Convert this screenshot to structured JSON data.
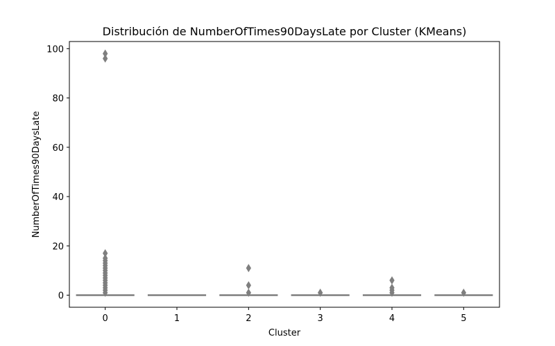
{
  "chart_data": {
    "type": "box",
    "title": "Distribución de NumberOfTimes90DaysLate por Cluster (KMeans)",
    "xlabel": "Cluster",
    "ylabel": "NumberOfTimes90DaysLate",
    "categories": [
      "0",
      "1",
      "2",
      "3",
      "4",
      "5"
    ],
    "ylim": [
      -4.9,
      102.9
    ],
    "yticks": [
      0,
      20,
      40,
      60,
      80,
      100
    ],
    "box_color": "#7f7f7f",
    "grid": false,
    "boxes": [
      {
        "cluster": "0",
        "q1": 0,
        "median": 0,
        "q3": 0,
        "whisker_low": 0,
        "whisker_high": 0,
        "outliers": [
          1,
          2,
          3,
          4,
          5,
          6,
          7,
          8,
          9,
          10,
          11,
          12,
          13,
          14,
          15,
          17,
          96,
          98
        ]
      },
      {
        "cluster": "1",
        "q1": 0,
        "median": 0,
        "q3": 0,
        "whisker_low": 0,
        "whisker_high": 0,
        "outliers": []
      },
      {
        "cluster": "2",
        "q1": 0,
        "median": 0,
        "q3": 0,
        "whisker_low": 0,
        "whisker_high": 0,
        "outliers": [
          1,
          4,
          11
        ]
      },
      {
        "cluster": "3",
        "q1": 0,
        "median": 0,
        "q3": 0,
        "whisker_low": 0,
        "whisker_high": 0,
        "outliers": [
          1
        ]
      },
      {
        "cluster": "4",
        "q1": 0,
        "median": 0,
        "q3": 0,
        "whisker_low": 0,
        "whisker_high": 0,
        "outliers": [
          1,
          2,
          3,
          6
        ]
      },
      {
        "cluster": "5",
        "q1": 0,
        "median": 0,
        "q3": 0,
        "whisker_low": 0,
        "whisker_high": 0,
        "outliers": [
          1
        ]
      }
    ]
  }
}
